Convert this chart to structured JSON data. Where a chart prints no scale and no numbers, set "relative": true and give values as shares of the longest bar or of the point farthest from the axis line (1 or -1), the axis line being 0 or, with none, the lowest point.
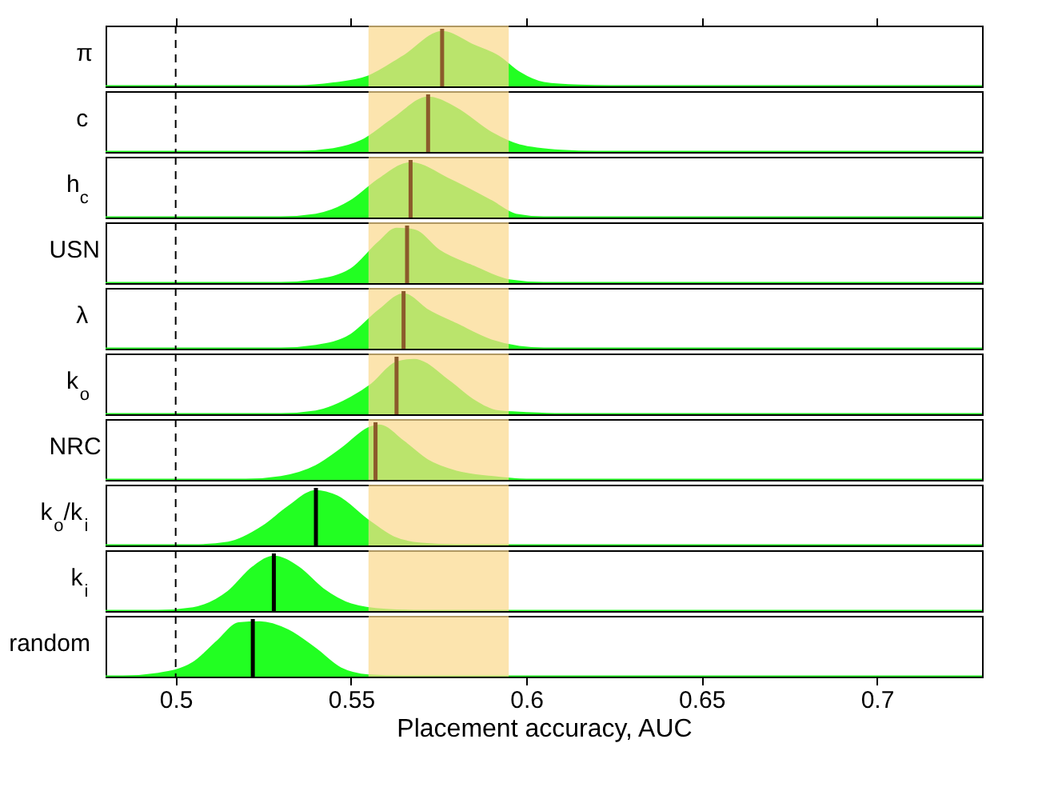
{
  "chart_data": [
    {
      "type": "area",
      "ylabel": "π",
      "color": "#22ff22",
      "relative": true,
      "xlim": [
        0.48,
        0.73
      ],
      "xticks": [
        0.5,
        0.55,
        0.6,
        0.65,
        0.7
      ],
      "tick_labels": false,
      "x": [
        0.48,
        0.535,
        0.545,
        0.555,
        0.565,
        0.576,
        0.585,
        0.592,
        0.598,
        0.605,
        0.615,
        0.625,
        0.73
      ],
      "values": [
        0,
        0,
        0.05,
        0.18,
        0.55,
        1.0,
        0.75,
        0.55,
        0.25,
        0.06,
        0.01,
        0,
        0
      ],
      "ref_lines": [
        {
          "axis": "x",
          "value": 0.5,
          "line_style": "dashed",
          "color": "#000000"
        },
        {
          "axis": "x",
          "value": 0.576,
          "color": "#8b5a2b"
        }
      ],
      "bands": [
        {
          "axis": "x",
          "from": 0.555,
          "to": 0.595,
          "color": "#fbd98b"
        }
      ]
    },
    {
      "type": "area",
      "ylabel": "c",
      "color": "#22ff22",
      "relative": true,
      "xlim": [
        0.48,
        0.73
      ],
      "xticks": [
        0.5,
        0.55,
        0.6,
        0.65,
        0.7
      ],
      "tick_labels": false,
      "x": [
        0.48,
        0.535,
        0.545,
        0.553,
        0.562,
        0.572,
        0.58,
        0.59,
        0.598,
        0.61,
        0.62,
        0.73
      ],
      "values": [
        0,
        0,
        0.05,
        0.2,
        0.6,
        1,
        0.8,
        0.35,
        0.12,
        0.02,
        0,
        0
      ],
      "ref_lines": [
        {
          "axis": "x",
          "value": 0.5,
          "line_style": "dashed",
          "color": "#000000"
        },
        {
          "axis": "x",
          "value": 0.572,
          "color": "#8b5a2b"
        }
      ],
      "bands": [
        {
          "axis": "x",
          "from": 0.555,
          "to": 0.595,
          "color": "#fbd98b"
        }
      ]
    },
    {
      "type": "area",
      "ylabel": "h$_{c}$",
      "color": "#22ff22",
      "relative": true,
      "xlim": [
        0.48,
        0.73
      ],
      "xticks": [
        0.5,
        0.55,
        0.6,
        0.65,
        0.7
      ],
      "tick_labels": false,
      "x": [
        0.48,
        0.53,
        0.54,
        0.55,
        0.558,
        0.567,
        0.578,
        0.59,
        0.597,
        0.605,
        0.73
      ],
      "values": [
        0,
        0,
        0.05,
        0.3,
        0.7,
        1,
        0.7,
        0.3,
        0.05,
        0,
        0
      ],
      "ref_lines": [
        {
          "axis": "x",
          "value": 0.5,
          "line_style": "dashed",
          "color": "#000000"
        },
        {
          "axis": "x",
          "value": 0.567,
          "color": "#8b5a2b"
        }
      ],
      "bands": [
        {
          "axis": "x",
          "from": 0.555,
          "to": 0.595,
          "color": "#fbd98b"
        }
      ]
    },
    {
      "type": "area",
      "ylabel": "USN",
      "color": "#22ff22",
      "relative": true,
      "xlim": [
        0.48,
        0.73
      ],
      "xticks": [
        0.5,
        0.55,
        0.6,
        0.65,
        0.7
      ],
      "tick_labels": false,
      "x": [
        0.48,
        0.53,
        0.54,
        0.55,
        0.558,
        0.563,
        0.568,
        0.575,
        0.585,
        0.595,
        0.605,
        0.73
      ],
      "values": [
        0,
        0,
        0.05,
        0.25,
        0.75,
        1,
        0.97,
        0.6,
        0.3,
        0.05,
        0,
        0
      ],
      "ref_lines": [
        {
          "axis": "x",
          "value": 0.5,
          "line_style": "dashed",
          "color": "#000000"
        },
        {
          "axis": "x",
          "value": 0.566,
          "color": "#8b5a2b"
        }
      ],
      "bands": [
        {
          "axis": "x",
          "from": 0.555,
          "to": 0.595,
          "color": "#fbd98b"
        }
      ]
    },
    {
      "type": "area",
      "ylabel": "λ",
      "color": "#22ff22",
      "relative": true,
      "xlim": [
        0.48,
        0.73
      ],
      "xticks": [
        0.5,
        0.55,
        0.6,
        0.65,
        0.7
      ],
      "tick_labels": false,
      "x": [
        0.48,
        0.53,
        0.54,
        0.55,
        0.558,
        0.565,
        0.572,
        0.58,
        0.59,
        0.598,
        0.605,
        0.73
      ],
      "values": [
        0,
        0,
        0.05,
        0.25,
        0.7,
        1,
        0.7,
        0.45,
        0.15,
        0.03,
        0,
        0
      ],
      "ref_lines": [
        {
          "axis": "x",
          "value": 0.5,
          "line_style": "dashed",
          "color": "#000000"
        },
        {
          "axis": "x",
          "value": 0.565,
          "color": "#8b5a2b"
        }
      ],
      "bands": [
        {
          "axis": "x",
          "from": 0.555,
          "to": 0.595,
          "color": "#fbd98b"
        }
      ]
    },
    {
      "type": "area",
      "ylabel": "k$_{o}$",
      "color": "#22ff22",
      "relative": true,
      "xlim": [
        0.48,
        0.73
      ],
      "xticks": [
        0.5,
        0.55,
        0.6,
        0.65,
        0.7
      ],
      "tick_labels": false,
      "x": [
        0.48,
        0.53,
        0.54,
        0.55,
        0.556,
        0.563,
        0.568,
        0.578,
        0.585,
        0.592,
        0.6,
        0.61,
        0.73
      ],
      "values": [
        0,
        0,
        0.05,
        0.3,
        0.55,
        0.95,
        1,
        0.6,
        0.25,
        0.05,
        0.02,
        0,
        0
      ],
      "ref_lines": [
        {
          "axis": "x",
          "value": 0.5,
          "line_style": "dashed",
          "color": "#000000"
        },
        {
          "axis": "x",
          "value": 0.563,
          "color": "#8b5a2b"
        }
      ],
      "bands": [
        {
          "axis": "x",
          "from": 0.555,
          "to": 0.595,
          "color": "#fbd98b"
        }
      ]
    },
    {
      "type": "area",
      "ylabel": "NRC",
      "color": "#22ff22",
      "relative": true,
      "xlim": [
        0.48,
        0.73
      ],
      "xticks": [
        0.5,
        0.55,
        0.6,
        0.65,
        0.7
      ],
      "tick_labels": false,
      "x": [
        0.48,
        0.52,
        0.53,
        0.54,
        0.548,
        0.555,
        0.558,
        0.565,
        0.572,
        0.58,
        0.59,
        0.6,
        0.73
      ],
      "values": [
        0,
        0,
        0.05,
        0.25,
        0.6,
        0.95,
        1,
        0.7,
        0.35,
        0.15,
        0.05,
        0,
        0
      ],
      "ref_lines": [
        {
          "axis": "x",
          "value": 0.5,
          "line_style": "dashed",
          "color": "#000000"
        },
        {
          "axis": "x",
          "value": 0.557,
          "color": "#8b5a2b"
        }
      ],
      "bands": [
        {
          "axis": "x",
          "from": 0.555,
          "to": 0.595,
          "color": "#fbd98b"
        }
      ]
    },
    {
      "type": "area",
      "ylabel": "k$_{o}$/k$_{i}$",
      "color": "#22ff22",
      "relative": true,
      "xlim": [
        0.48,
        0.73
      ],
      "xticks": [
        0.5,
        0.55,
        0.6,
        0.65,
        0.7
      ],
      "tick_labels": false,
      "x": [
        0.48,
        0.505,
        0.515,
        0.525,
        0.532,
        0.54,
        0.546,
        0.555,
        0.562,
        0.57,
        0.58,
        0.73
      ],
      "values": [
        0,
        0,
        0.05,
        0.35,
        0.7,
        1,
        0.9,
        0.45,
        0.15,
        0.03,
        0,
        0
      ],
      "ref_lines": [
        {
          "axis": "x",
          "value": 0.5,
          "line_style": "dashed",
          "color": "#000000"
        },
        {
          "axis": "x",
          "value": 0.54,
          "color": "#000000"
        }
      ],
      "bands": [
        {
          "axis": "x",
          "from": 0.555,
          "to": 0.595,
          "color": "#fbd98b"
        }
      ]
    },
    {
      "type": "area",
      "ylabel": "k$_{i}$",
      "color": "#22ff22",
      "relative": true,
      "xlim": [
        0.48,
        0.73
      ],
      "xticks": [
        0.5,
        0.55,
        0.6,
        0.65,
        0.7
      ],
      "tick_labels": false,
      "x": [
        0.48,
        0.495,
        0.505,
        0.515,
        0.522,
        0.528,
        0.535,
        0.542,
        0.55,
        0.56,
        0.57,
        0.73
      ],
      "values": [
        0,
        0,
        0.05,
        0.35,
        0.8,
        1,
        0.8,
        0.4,
        0.12,
        0.02,
        0,
        0
      ],
      "ref_lines": [
        {
          "axis": "x",
          "value": 0.5,
          "line_style": "dashed",
          "color": "#000000"
        },
        {
          "axis": "x",
          "value": 0.528,
          "color": "#000000"
        }
      ],
      "bands": [
        {
          "axis": "x",
          "from": 0.555,
          "to": 0.595,
          "color": "#fbd98b"
        }
      ]
    },
    {
      "type": "area",
      "ylabel": "random",
      "xlabel": "Placement accuracy, AUC",
      "color": "#22ff22",
      "relative": true,
      "xlim": [
        0.48,
        0.73
      ],
      "xticks": [
        0.5,
        0.55,
        0.6,
        0.65,
        0.7
      ],
      "tick_labels": "x",
      "x": [
        0.48,
        0.485,
        0.495,
        0.505,
        0.512,
        0.518,
        0.524,
        0.532,
        0.54,
        0.547,
        0.555,
        0.565,
        0.73
      ],
      "values": [
        0,
        0,
        0.05,
        0.25,
        0.65,
        0.98,
        1,
        0.85,
        0.5,
        0.15,
        0.02,
        0,
        0
      ],
      "ref_lines": [
        {
          "axis": "x",
          "value": 0.5,
          "line_style": "dashed",
          "color": "#000000"
        },
        {
          "axis": "x",
          "value": 0.522,
          "color": "#000000"
        }
      ],
      "bands": [
        {
          "axis": "x",
          "from": 0.555,
          "to": 0.595,
          "color": "#fbd98b"
        }
      ]
    }
  ]
}
